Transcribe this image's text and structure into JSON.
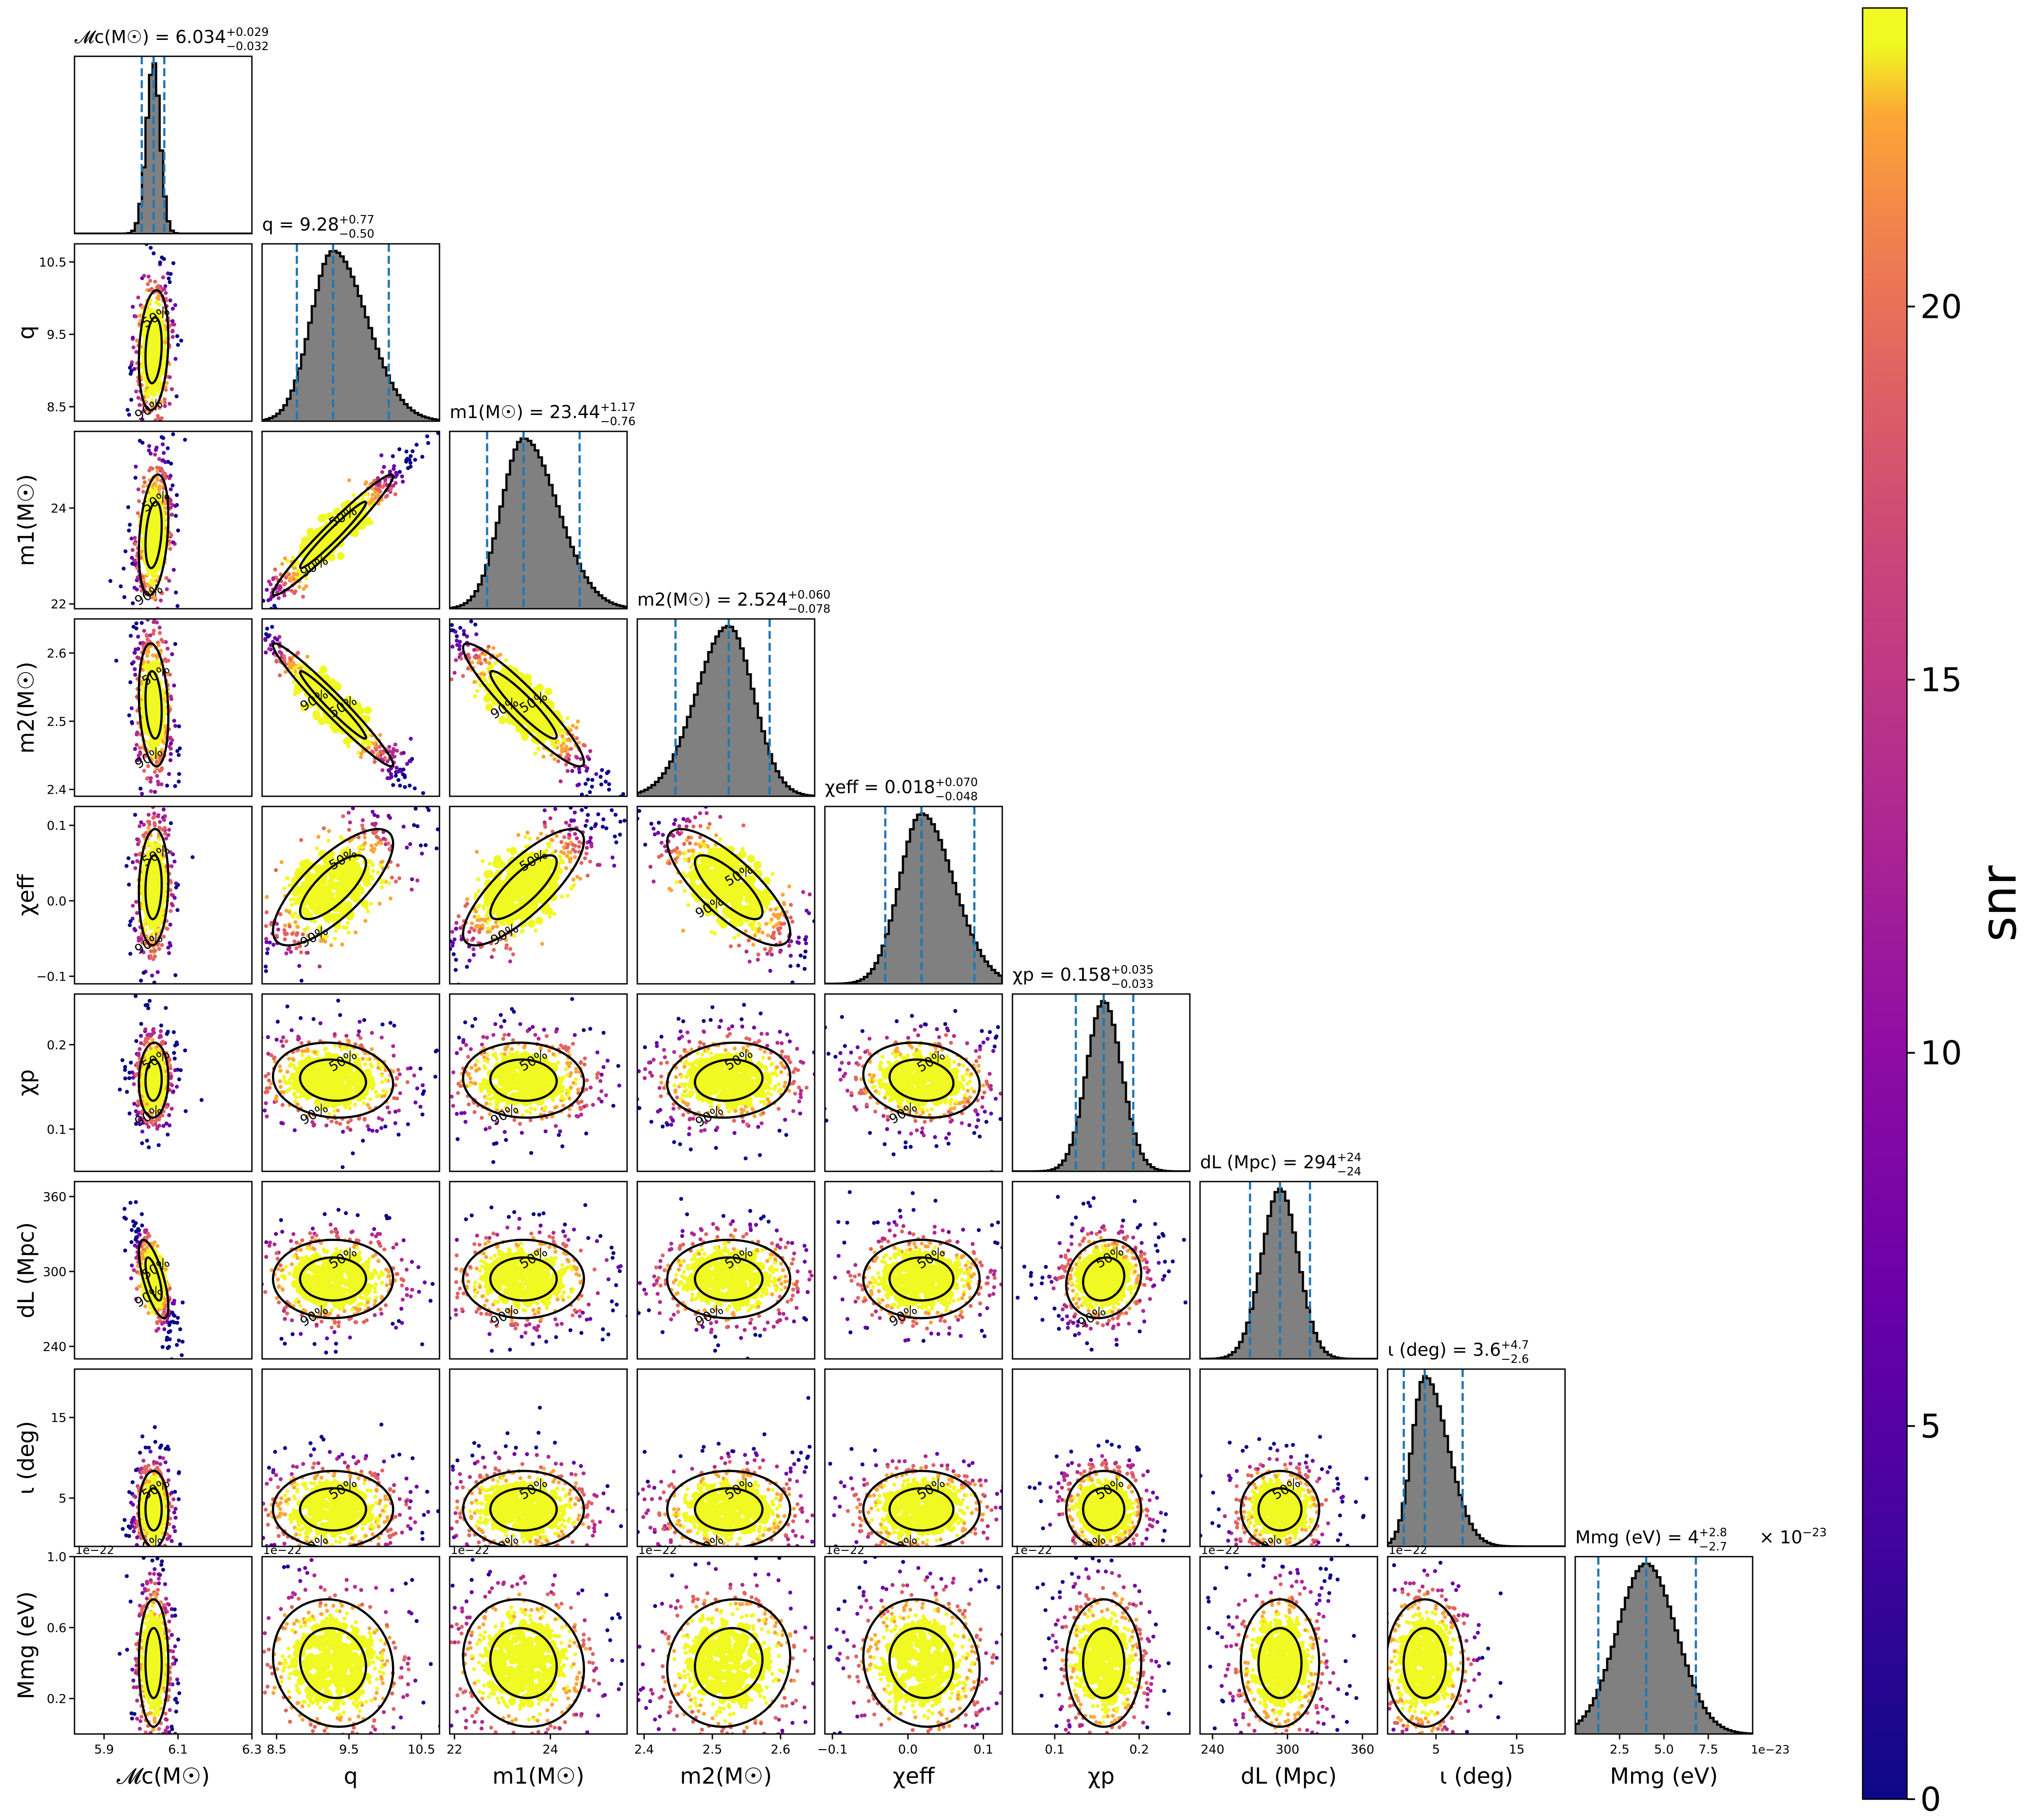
{
  "chart_data": {
    "type": "corner",
    "colorbar": {
      "label": "snr",
      "range": [
        0,
        24
      ],
      "ticks": [
        "0",
        "5",
        "10",
        "15",
        "20"
      ]
    },
    "contour_levels": [
      "50%",
      "90%"
    ],
    "offset_label": "1e−22",
    "offset_label_hist": "1e−23",
    "params": [
      {
        "id": "mc",
        "label": "𝓜c(M☉)",
        "median": 6.034,
        "lo": 6.002,
        "hi": 6.063,
        "range": [
          5.82,
          6.3
        ],
        "title_main": "𝓜c(M☉) = 6.034",
        "title_plus": "+0.029",
        "title_minus": "−0.032",
        "ticks": [
          {
            "v": 5.9,
            "t": "5.9"
          },
          {
            "v": 6.1,
            "t": "6.1"
          },
          {
            "v": 6.3,
            "t": "6.3"
          }
        ]
      },
      {
        "id": "q",
        "label": "q",
        "median": 9.28,
        "lo": 8.78,
        "hi": 10.05,
        "range": [
          8.3,
          10.75
        ],
        "title_main": "q = 9.28",
        "title_plus": "+0.77",
        "title_minus": "−0.50",
        "ticks": [
          {
            "v": 8.5,
            "t": "8.5"
          },
          {
            "v": 9.5,
            "t": "9.5"
          },
          {
            "v": 10.5,
            "t": "10.5"
          }
        ]
      },
      {
        "id": "m1",
        "label": "m1(M☉)",
        "median": 23.44,
        "lo": 22.68,
        "hi": 24.61,
        "range": [
          21.9,
          25.6
        ],
        "title_main": "m1(M☉) = 23.44",
        "title_plus": "+1.17",
        "title_minus": "−0.76",
        "ticks": [
          {
            "v": 22,
            "t": "22"
          },
          {
            "v": 24,
            "t": "24"
          }
        ]
      },
      {
        "id": "m2",
        "label": "m2(M☉)",
        "median": 2.524,
        "lo": 2.446,
        "hi": 2.584,
        "range": [
          2.39,
          2.65
        ],
        "title_main": "m2(M☉) = 2.524",
        "title_plus": "+0.060",
        "title_minus": "−0.078",
        "ticks": [
          {
            "v": 2.4,
            "t": "2.4"
          },
          {
            "v": 2.5,
            "t": "2.5"
          },
          {
            "v": 2.6,
            "t": "2.6"
          }
        ]
      },
      {
        "id": "chi",
        "label": "χeff",
        "median": 0.018,
        "lo": -0.03,
        "hi": 0.088,
        "range": [
          -0.11,
          0.125
        ],
        "title_main": "χeff = 0.018",
        "title_plus": "+0.070",
        "title_minus": "−0.048",
        "ticks": [
          {
            "v": -0.1,
            "t": "−0.1"
          },
          {
            "v": 0.0,
            "t": "0.0"
          },
          {
            "v": 0.1,
            "t": "0.1"
          }
        ]
      },
      {
        "id": "chip",
        "label": "χp",
        "median": 0.158,
        "lo": 0.125,
        "hi": 0.193,
        "range": [
          0.05,
          0.26
        ],
        "title_main": "χp = 0.158",
        "title_plus": "+0.035",
        "title_minus": "−0.033",
        "ticks": [
          {
            "v": 0.1,
            "t": "0.1"
          },
          {
            "v": 0.2,
            "t": "0.2"
          }
        ]
      },
      {
        "id": "dl",
        "label": "dL (Mpc)",
        "median": 294,
        "lo": 270,
        "hi": 318,
        "range": [
          230,
          372
        ],
        "title_main": "dL (Mpc) = 294",
        "title_plus": "+24",
        "title_minus": "−24",
        "ticks": [
          {
            "v": 240,
            "t": "240"
          },
          {
            "v": 300,
            "t": "300"
          },
          {
            "v": 360,
            "t": "360"
          }
        ]
      },
      {
        "id": "iota",
        "label": "ι (deg)",
        "median": 3.6,
        "lo": 1.0,
        "hi": 8.3,
        "range": [
          -1,
          21
        ],
        "title_main": "ι (deg) = 3.6",
        "title_plus": "+4.7",
        "title_minus": "−2.6",
        "ticks": [
          {
            "v": 5,
            "t": "5"
          },
          {
            "v": 15,
            "t": "15"
          }
        ]
      },
      {
        "id": "mg",
        "label": "Mmg (eV)",
        "median": 4.0,
        "lo": 1.3,
        "hi": 6.8,
        "range": [
          0,
          10
        ],
        "title_main": "Mmg (eV) = 4",
        "title_plus": "+2.8",
        "title_minus": "−2.7",
        "title_suffix": " × 10",
        "title_exp": "−23",
        "ticks": [
          {
            "v": 2.5,
            "t": "2.5"
          },
          {
            "v": 5.0,
            "t": "5.0"
          },
          {
            "v": 7.5,
            "t": "7.5"
          }
        ],
        "yticks": [
          {
            "v": 2,
            "t": "0.2"
          },
          {
            "v": 6,
            "t": "0.6"
          },
          {
            "v": 10,
            "t": "1.0"
          }
        ]
      }
    ],
    "corr": {
      "1,0": 0.2,
      "2,0": 0.3,
      "2,1": 0.97,
      "3,0": -0.2,
      "3,1": -0.97,
      "3,2": -0.93,
      "4,0": 0.1,
      "4,1": 0.75,
      "4,2": 0.8,
      "4,3": -0.78,
      "5,0": 0.05,
      "5,1": -0.1,
      "5,2": -0.05,
      "5,3": 0.1,
      "5,4": -0.15,
      "6,0": -0.7,
      "6,1": 0.0,
      "6,2": 0.0,
      "6,3": 0.0,
      "6,4": 0.0,
      "6,5": 0.15,
      "7,0": 0.0,
      "7,1": 0.0,
      "7,2": 0.0,
      "7,3": 0.0,
      "7,4": 0.0,
      "7,5": 0.0,
      "7,6": 0.0,
      "8,0": 0.0,
      "8,1": -0.1,
      "8,2": -0.1,
      "8,3": 0.1,
      "8,4": -0.1,
      "8,5": 0.0,
      "8,6": 0.0,
      "8,7": 0.0
    }
  }
}
